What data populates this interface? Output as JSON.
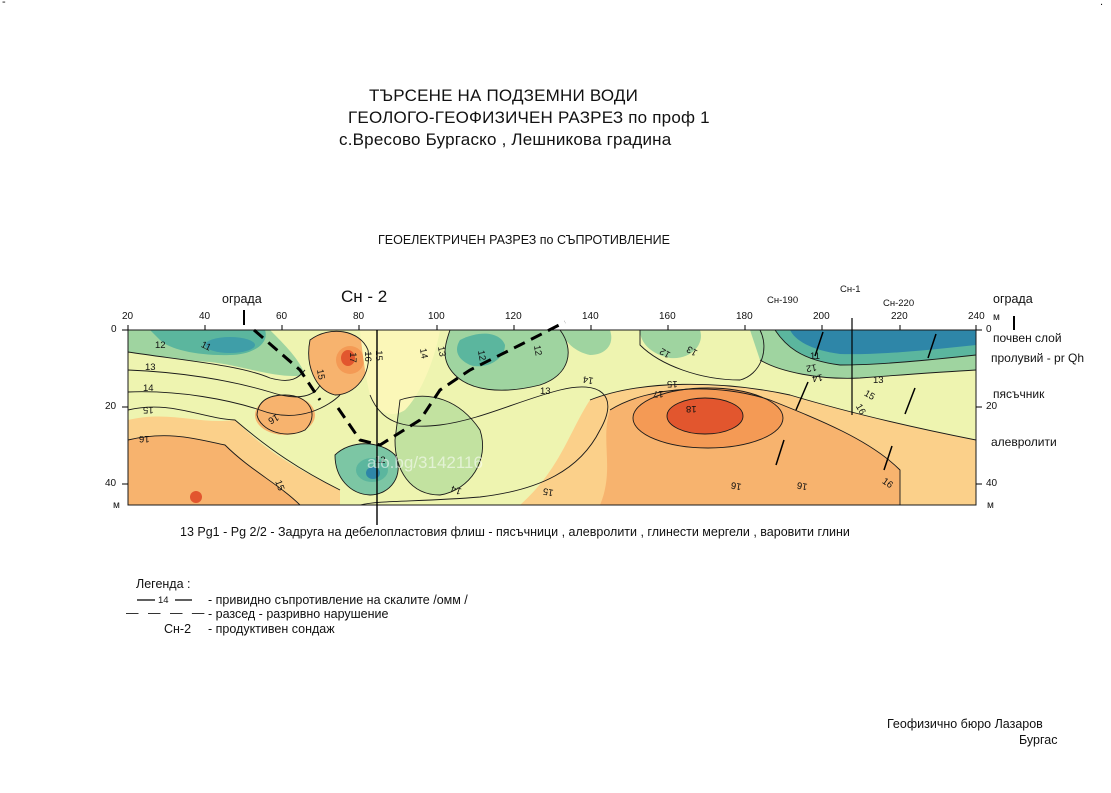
{
  "corner_marks": [
    "-",
    "."
  ],
  "title": {
    "line1": "ТЪРСЕНЕ НА ПОДЗЕМНИ  ВОДИ",
    "line2": "ГЕОЛОГО-ГЕОФИЗИЧЕН РАЗРЕЗ  по проф 1",
    "line3": "с.Вресово  Бургаско , Лешникова градина"
  },
  "section_title": "ГЕОЕЛЕКТРИЧЕН РАЗРЕЗ по СЪПРОТИВЛЕНИЕ",
  "top_labels": {
    "fence_left": "ограда",
    "fence_right": "ограда",
    "well_main": "Сн - 2",
    "well_190": "Сн-190",
    "well_1": "Сн-1",
    "well_220": "Сн-220"
  },
  "axis": {
    "x_ticks": [
      "20",
      "40",
      "60",
      "80",
      "100",
      "120",
      "140",
      "160",
      "180",
      "200",
      "220",
      "240"
    ],
    "y_ticks_left": [
      "0",
      "20",
      "40"
    ],
    "y_ticks_right": [
      "0",
      "20",
      "40"
    ],
    "unit_m": "м"
  },
  "layers": [
    "почвен слой",
    "пролувий - pr Qh",
    "пясъчник",
    "алевролити"
  ],
  "contour_labels": [
    "11",
    "12",
    "13",
    "14",
    "15",
    "16",
    "17",
    "18"
  ],
  "formation_note": "13 Pg1 - Pg 2/2 - Задруга на дебелопластовия флиш - пясъчници , алевролити , глинести мергели , варовити глини",
  "watermark": "alo.bg/3142116",
  "legend": {
    "title": "Легенда :",
    "contour_sample": "14",
    "items": [
      "-  привидно съпротивление на скалите /омм /",
      "-  разсед - разривно нарушение",
      "-  продуктивен  сондаж"
    ],
    "well_symbol": "Сн-2"
  },
  "footer": {
    "company": "Геофизично  бюро  Лазаров",
    "city": "Бургас"
  },
  "colors": {
    "low": "#2e86a8",
    "mid_low": "#7cc6a4",
    "mid": "#d9eaa0",
    "neutral": "#fbf7b8",
    "mid_high": "#fbd08a",
    "high": "#f5a25a",
    "peak": "#e2562e"
  }
}
